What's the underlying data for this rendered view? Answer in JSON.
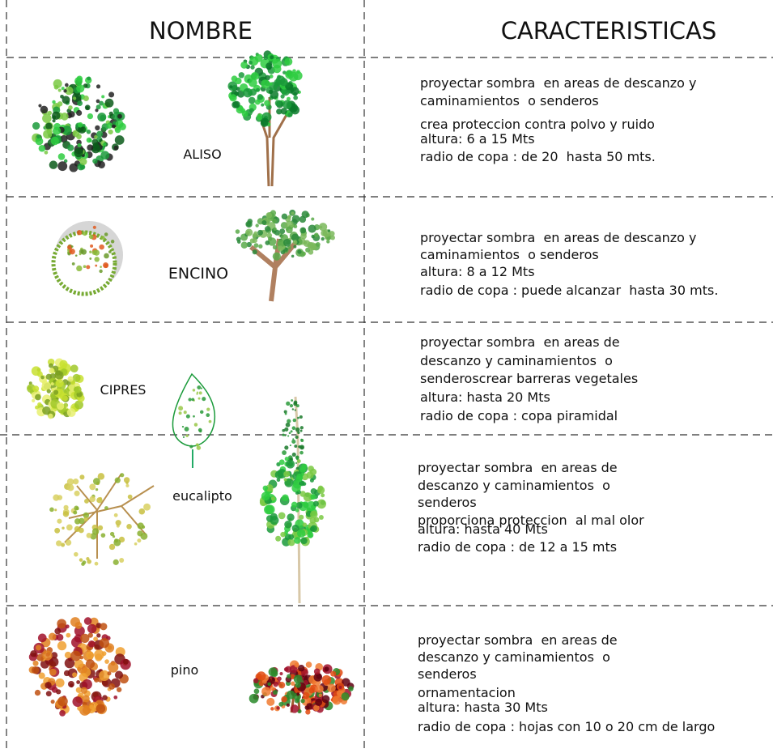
{
  "header": {
    "nombre": "NOMBRE",
    "caracteristicas": "CARACTERISTICAS"
  },
  "rows": [
    {
      "name": "ALISO",
      "lines": [
        "proyectar sombra  en areas de descanzo y",
        "caminamientos  o senderos",
        "crea proteccion contra polvo y ruido",
        "altura: 6 a 15 Mts",
        "radio de copa : de 20  hasta 50 mts."
      ]
    },
    {
      "name": "ENCINO",
      "lines": [
        "proyectar sombra  en areas de descanzo y",
        "caminamientos  o senderos",
        "altura: 8 a 12 Mts",
        "radio de copa : puede alcanzar  hasta 30 mts."
      ]
    },
    {
      "name": "CIPRES",
      "lines": [
        "proyectar sombra  en areas de",
        "descanzo y caminamientos  o",
        "senderoscrear barreras vegetales",
        "altura: hasta 20 Mts",
        "radio de copa : copa piramidal"
      ]
    },
    {
      "name": "eucalipto",
      "lines": [
        "proyectar sombra  en areas de",
        "descanzo y caminamientos  o",
        "senderos",
        "proporciona proteccion  al mal olor",
        "altura: hasta 40 Mts",
        "radio de copa : de 12 a 15 mts"
      ]
    },
    {
      "name": "pino",
      "lines": [
        "proyectar sombra  en areas de",
        "descanzo y caminamientos  o",
        "senderos",
        "ornamentacion",
        "altura: hasta 30 Mts",
        "radio de copa : hojas con 10 o 20 cm de largo"
      ]
    }
  ]
}
